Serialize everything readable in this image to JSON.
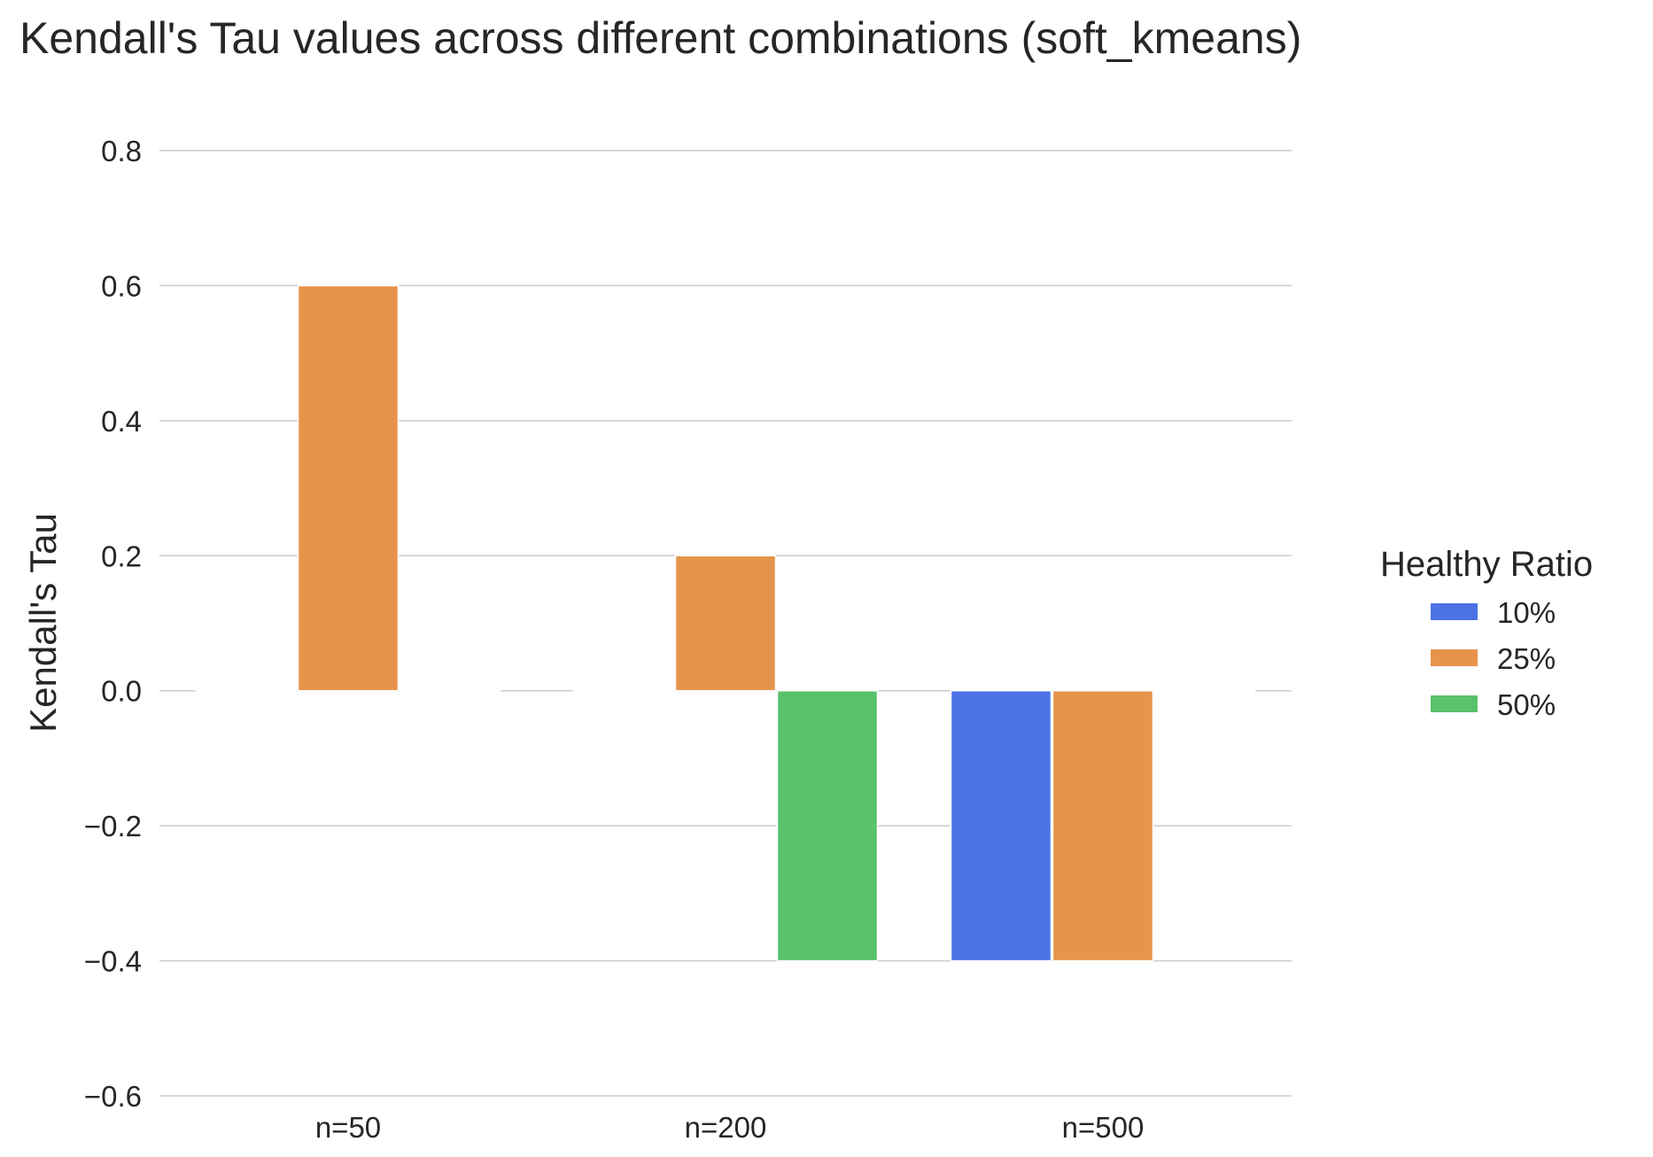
{
  "chart_data": {
    "type": "bar",
    "title": "Kendall's Tau values across different combinations (soft_kmeans)",
    "xlabel": "",
    "ylabel": "Kendall's Tau",
    "categories": [
      "n=50",
      "n=200",
      "n=500"
    ],
    "series": [
      {
        "name": "10%",
        "color": "#4c72e6",
        "values": [
          0.0,
          0.0,
          -0.4
        ]
      },
      {
        "name": "25%",
        "color": "#e6944c",
        "values": [
          0.6,
          0.2,
          -0.4
        ]
      },
      {
        "name": "50%",
        "color": "#5ac26a",
        "values": [
          0.0,
          -0.4,
          0.0
        ]
      }
    ],
    "ylim": [
      -0.6,
      0.8
    ],
    "yticks": [
      0.8,
      0.6,
      0.4,
      0.2,
      0.0,
      -0.2,
      -0.4,
      -0.6
    ],
    "ytick_labels": [
      "0.8",
      "0.6",
      "0.4",
      "0.2",
      "0.0",
      "−0.2",
      "−0.4",
      "−0.6"
    ],
    "grid": "horizontal",
    "legend": {
      "title": "Healthy Ratio",
      "position": "right"
    }
  }
}
